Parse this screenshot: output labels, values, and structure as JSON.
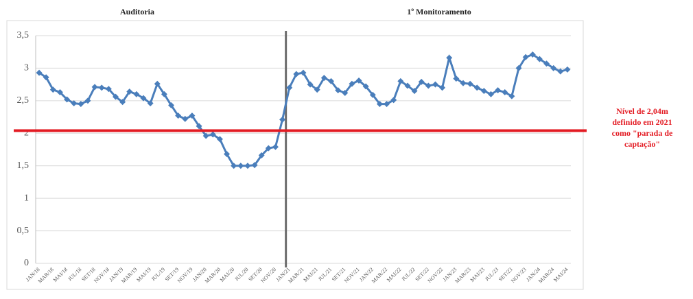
{
  "chart_data": {
    "type": "line",
    "section_labels": [
      "Auditoria",
      "1º Monitoramento"
    ],
    "categories": [
      "JAN/18",
      null,
      "MAR/18",
      null,
      "MAI/18",
      null,
      "JUL/18",
      null,
      "SET/18",
      null,
      "NOV/18",
      null,
      "JAN/19",
      null,
      "MAR/19",
      null,
      "MAI/19",
      null,
      "JUL/19",
      null,
      "SET/19",
      null,
      "NOV/19",
      null,
      "JAN/20",
      null,
      "MAR/20",
      null,
      "MAI/20",
      null,
      "JUL/20",
      null,
      "SET/20",
      null,
      "NOV/20",
      null,
      "JAN/21",
      null,
      "MAR/21",
      null,
      "MAI/21",
      null,
      "JUL/21",
      null,
      "SET/21",
      null,
      "NOV/21",
      null,
      "JAN/22",
      null,
      "MAR/22",
      null,
      "MAI/22",
      null,
      "JUL/22",
      null,
      "SET/22",
      null,
      "NOV/22",
      null,
      "JAN/23",
      null,
      "MAR/23",
      null,
      "MAI/23",
      null,
      "JUL/23",
      null,
      "SET/23",
      null,
      "NOV/23",
      null,
      "JAN/24",
      null,
      "MAR/24",
      null,
      "MAI/24"
    ],
    "series": [
      {
        "name": "Nível",
        "color": "#4a7ebb",
        "values": [
          2.93,
          2.86,
          2.67,
          2.63,
          2.52,
          2.46,
          2.45,
          2.5,
          2.71,
          2.7,
          2.68,
          2.56,
          2.48,
          2.64,
          2.6,
          2.54,
          2.46,
          2.76,
          2.6,
          2.43,
          2.27,
          2.22,
          2.27,
          2.11,
          1.96,
          1.98,
          1.91,
          1.68,
          1.5,
          1.5,
          1.5,
          1.51,
          1.66,
          1.77,
          1.79,
          2.21,
          2.7,
          2.91,
          2.93,
          2.75,
          2.67,
          2.85,
          2.8,
          2.66,
          2.62,
          2.76,
          2.81,
          2.72,
          2.59,
          2.45,
          2.45,
          2.51,
          2.8,
          2.73,
          2.65,
          2.79,
          2.73,
          2.75,
          2.7,
          3.16,
          2.84,
          2.77,
          2.76,
          2.7,
          2.65,
          2.6,
          2.66,
          2.63,
          2.57,
          3.0,
          3.17,
          3.21,
          3.14,
          3.07,
          3.0,
          2.95,
          2.98
        ]
      }
    ],
    "ylim": [
      0,
      3.5
    ],
    "yticks": [
      0,
      {
        "value": 0.5,
        "label": "0,5"
      },
      1,
      {
        "value": 1.5,
        "label": "1,5"
      },
      2,
      {
        "value": 2.5,
        "label": "2,5"
      },
      3,
      {
        "value": 3.5,
        "label": "3,5"
      }
    ],
    "grid": true,
    "reference_line": {
      "value": 2.04,
      "color": "#e31b23",
      "label": [
        "Nível de 2,04m",
        "definido em 2021",
        "como \"parada de",
        "captação\""
      ]
    }
  }
}
